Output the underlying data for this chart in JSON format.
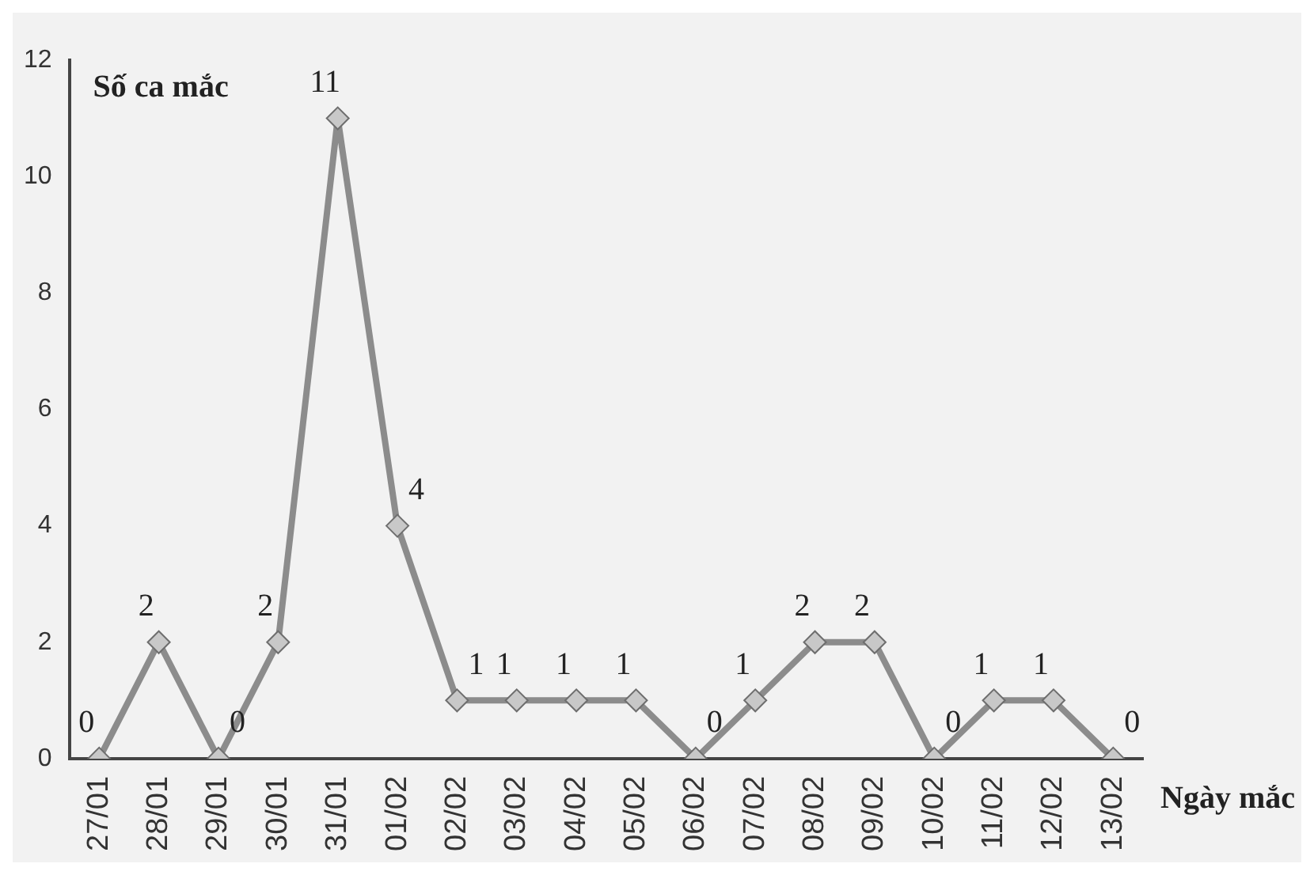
{
  "chart_data": {
    "type": "line",
    "ylabel": "Số ca mắc",
    "xlabel": "Ngày mắc",
    "categories": [
      "27/01",
      "28/01",
      "29/01",
      "30/01",
      "31/01",
      "01/02",
      "02/02",
      "03/02",
      "04/02",
      "05/02",
      "06/02",
      "07/02",
      "08/02",
      "09/02",
      "10/02",
      "11/02",
      "12/02",
      "13/02"
    ],
    "series": [
      {
        "color": "#8c8c8c",
        "values": [
          0,
          2,
          0,
          2,
          11,
          4,
          1,
          1,
          1,
          1,
          0,
          1,
          2,
          2,
          0,
          1,
          1,
          0
        ]
      }
    ],
    "ylim": [
      0,
      12
    ],
    "yticks": [
      0,
      2,
      4,
      6,
      8,
      10,
      12
    ],
    "grid": false,
    "legend": false,
    "marker": "diamond",
    "line_style": "solid",
    "data_labels": true
  }
}
